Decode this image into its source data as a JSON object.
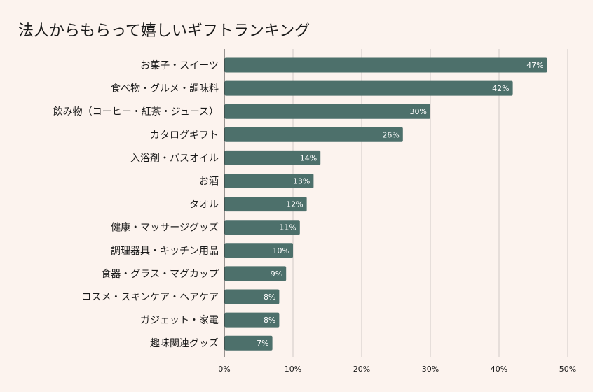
{
  "chart_data": {
    "type": "bar",
    "orientation": "horizontal",
    "title": "法人からもらって嬉しいギフトランキング",
    "categories": [
      "お菓子・スイーツ",
      "食べ物・グルメ・調味料",
      "飲み物（コーヒー・紅茶・ジュース）",
      "カタログギフト",
      "入浴剤・バスオイル",
      "お酒",
      "タオル",
      "健康・マッサージグッズ",
      "調理器具・キッチン用品",
      "食器・グラス・マグカップ",
      "コスメ・スキンケア・ヘアケア",
      "ガジェット・家電",
      "趣味関連グッズ"
    ],
    "values": [
      47,
      42,
      30,
      26,
      14,
      13,
      12,
      11,
      10,
      9,
      8,
      8,
      7
    ],
    "value_labels": [
      "47%",
      "42%",
      "30%",
      "26%",
      "14%",
      "13%",
      "12%",
      "11%",
      "10%",
      "9%",
      "8%",
      "8%",
      "7%"
    ],
    "xlim": [
      0,
      50
    ],
    "x_ticks": [
      0,
      10,
      20,
      30,
      40,
      50
    ],
    "x_tick_labels": [
      "0%",
      "10%",
      "20%",
      "30%",
      "40%",
      "50%"
    ],
    "grid": true,
    "legend": "none",
    "bar_color": "#4d706b",
    "grid_color": "#cfc9c5",
    "background": "#fcf3ee"
  }
}
